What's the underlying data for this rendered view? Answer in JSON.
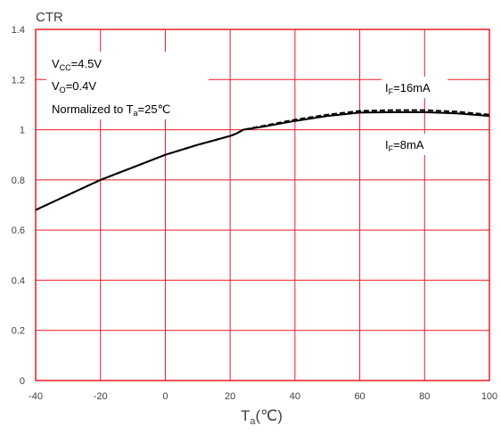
{
  "chart_data": {
    "type": "line",
    "ylabel": "CTR",
    "xlabel_main": "T",
    "xlabel_sub": "a",
    "xlabel_unit": "(℃)",
    "xlim": [
      -40,
      100
    ],
    "ylim": [
      0,
      1.4
    ],
    "x_ticks": [
      "-40",
      "-20",
      "0",
      "20",
      "40",
      "60",
      "80",
      "100"
    ],
    "y_ticks": [
      "0",
      "0.2",
      "0.4",
      "0.6",
      "0.8",
      "1",
      "1.2",
      "1.4"
    ],
    "grid": true,
    "grid_color": "#ee1c25",
    "conditions": {
      "vcc_main": "V",
      "vcc_sub": "CC",
      "vcc_val": "=4.5V",
      "vo_main": "V",
      "vo_sub": "O",
      "vo_val": "=0.4V",
      "norm_main": "Normalized to T",
      "norm_sub": "a",
      "norm_val": "=25℃"
    },
    "series": [
      {
        "name": "IF=16mA",
        "label_main": "I",
        "label_sub": "F",
        "label_val": "=16mA",
        "style": "dashed",
        "x": [
          -40,
          -30,
          -20,
          -10,
          0,
          10,
          20,
          22,
          24,
          30,
          40,
          50,
          60,
          70,
          80,
          90,
          100
        ],
        "y": [
          0.68,
          0.74,
          0.8,
          0.85,
          0.9,
          0.94,
          0.975,
          0.985,
          1.0,
          1.015,
          1.04,
          1.06,
          1.075,
          1.078,
          1.078,
          1.072,
          1.06
        ]
      },
      {
        "name": "IF=8mA",
        "label_main": "I",
        "label_sub": "F",
        "label_val": "=8mA",
        "style": "solid",
        "x": [
          -40,
          -30,
          -20,
          -10,
          0,
          10,
          20,
          22,
          24,
          30,
          40,
          50,
          60,
          70,
          80,
          90,
          100
        ],
        "y": [
          0.68,
          0.74,
          0.8,
          0.85,
          0.9,
          0.94,
          0.975,
          0.985,
          1.0,
          1.012,
          1.035,
          1.055,
          1.068,
          1.07,
          1.07,
          1.065,
          1.055
        ]
      }
    ]
  }
}
